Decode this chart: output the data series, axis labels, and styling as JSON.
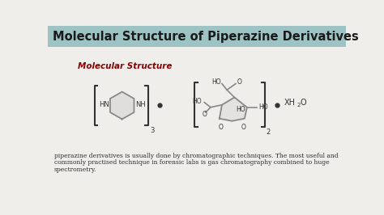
{
  "title": "Molecular Structure of Piperazine Derivatives",
  "title_bg_color": "#9DC3C4",
  "title_text_color": "#1a1a1a",
  "subtitle": "Molecular Structure",
  "subtitle_color": "#8B0000",
  "body_bg_color": "#f0eeea",
  "body_text_line1": "piperazine derivatives is usually done by chromatographic techniques. The most useful and",
  "body_text_line2": "commonly practised technique in forensic labs is gas chromatography combined to huge",
  "body_text_line3": "spectrometry.",
  "body_text_color": "#2a2a2a",
  "struct_color": "#888888",
  "bracket_color": "#333333",
  "fill_color": "#cccccc"
}
